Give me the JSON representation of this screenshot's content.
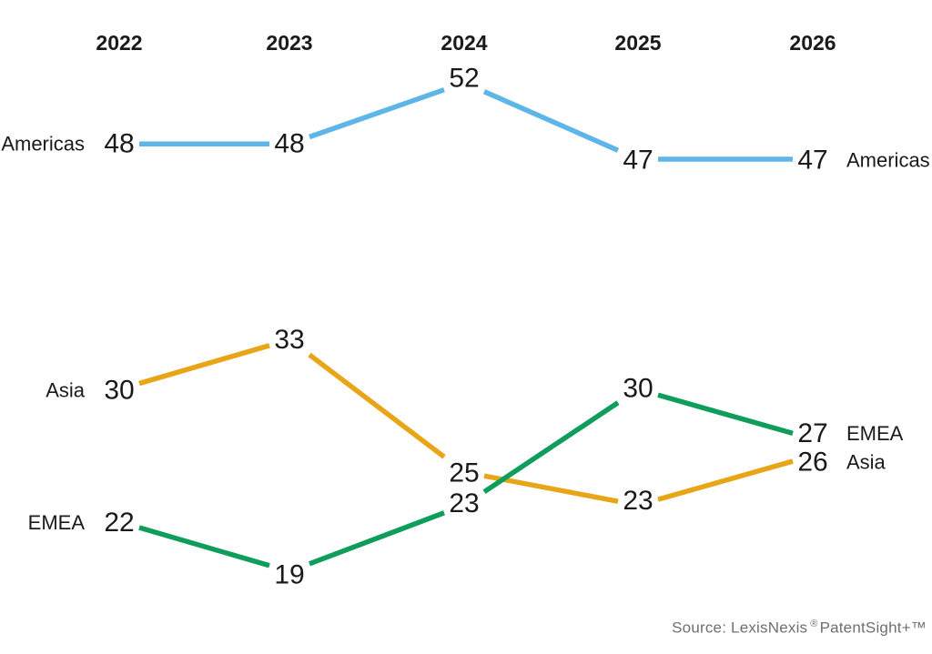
{
  "chart_data": {
    "type": "line",
    "subtype": "slope-chart",
    "title": "",
    "categories": [
      "2022",
      "2023",
      "2024",
      "2025",
      "2026"
    ],
    "series": [
      {
        "name": "Americas",
        "color": "#5EB5E8",
        "values": [
          48,
          48,
          52,
          47,
          47
        ]
      },
      {
        "name": "Asia",
        "color": "#E8A517",
        "values": [
          30,
          33,
          25,
          23,
          26
        ]
      },
      {
        "name": "EMEA",
        "color": "#0F9D5C",
        "values": [
          22,
          19,
          23,
          30,
          27
        ]
      }
    ],
    "series_labels": {
      "left": [
        "Americas",
        "Asia",
        "EMEA"
      ],
      "right": [
        "Americas",
        "EMEA",
        "Asia"
      ]
    },
    "value_labels_shown": true,
    "axes": "hidden",
    "grid": false,
    "legend": "inline-end-labels"
  },
  "source": {
    "prefix": "Source: LexisNexis",
    "registered": "®",
    "suffix": "PatentSight+™"
  },
  "colors": {
    "text": "#1a1a1a",
    "source_text": "#6f6f6f",
    "background": "#ffffff"
  }
}
